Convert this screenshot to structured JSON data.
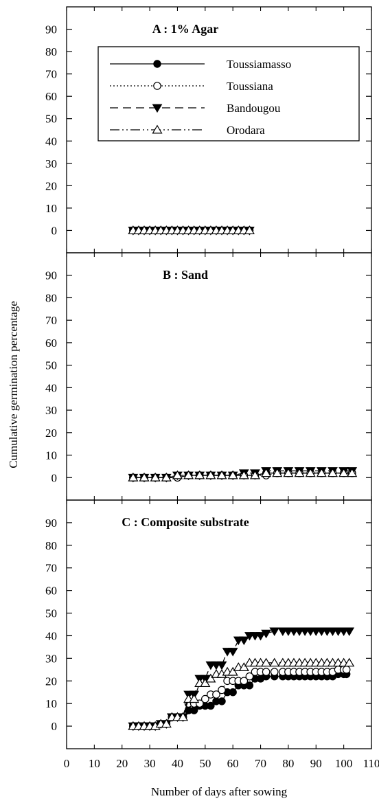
{
  "chart_data": {
    "type": "line",
    "ylabel": "Cumulative germination percentage",
    "xlabel": "Number of days after sowing",
    "xlim": [
      0,
      110
    ],
    "xticks": [
      0,
      10,
      20,
      30,
      40,
      50,
      60,
      70,
      80,
      90,
      100,
      110
    ],
    "ylim": [
      -10,
      100
    ],
    "yticks": [
      0,
      10,
      20,
      30,
      40,
      50,
      60,
      70,
      80,
      90
    ],
    "grid": false,
    "legend": {
      "placement": "top-right, inside panel A",
      "entries": [
        {
          "name": "Toussiamasso",
          "marker": "filled-circle",
          "line": "solid"
        },
        {
          "name": "Toussiana",
          "marker": "open-circle",
          "line": "dotted"
        },
        {
          "name": "Bandougou",
          "marker": "filled-down-triangle",
          "line": "dashed"
        },
        {
          "name": "Orodara",
          "marker": "open-up-triangle",
          "line": "dash-dot-dot"
        }
      ]
    },
    "panels": [
      {
        "title": "A : 1% Agar",
        "series": [
          {
            "name": "Toussiamasso",
            "x": [
              24,
              26,
              28,
              30,
              32,
              34,
              36,
              38,
              40,
              42,
              44,
              46,
              48,
              50,
              52,
              54,
              56,
              58,
              60,
              62,
              64,
              66
            ],
            "y": [
              0,
              0,
              0,
              0,
              0,
              0,
              0,
              0,
              0,
              0,
              0,
              0,
              0,
              0,
              0,
              0,
              0,
              0,
              0,
              0,
              0,
              0
            ]
          },
          {
            "name": "Toussiana",
            "x": [
              24,
              26,
              28,
              30,
              32,
              34,
              36,
              38,
              40,
              42,
              44,
              46,
              48,
              50,
              52,
              54,
              56,
              58,
              60,
              62,
              64,
              66
            ],
            "y": [
              0,
              0,
              0,
              0,
              0,
              0,
              0,
              0,
              0,
              0,
              0,
              0,
              0,
              0,
              0,
              0,
              0,
              0,
              0,
              0,
              0,
              0
            ]
          },
          {
            "name": "Bandougou",
            "x": [
              24,
              26,
              28,
              30,
              32,
              34,
              36,
              38,
              40,
              42,
              44,
              46,
              48,
              50,
              52,
              54,
              56,
              58,
              60,
              62,
              64,
              66
            ],
            "y": [
              0,
              0,
              0,
              0,
              0,
              0,
              0,
              0,
              0,
              0,
              0,
              0,
              0,
              0,
              0,
              0,
              0,
              0,
              0,
              0,
              0,
              0
            ]
          },
          {
            "name": "Orodara",
            "x": [
              24,
              26,
              28,
              30,
              32,
              34,
              36,
              38,
              40,
              42,
              44,
              46,
              48,
              50,
              52,
              54,
              56,
              58,
              60,
              62,
              64,
              66
            ],
            "y": [
              0,
              0,
              0,
              0,
              0,
              0,
              0,
              0,
              0,
              0,
              0,
              0,
              0,
              0,
              0,
              0,
              0,
              0,
              0,
              0,
              0,
              0
            ]
          }
        ]
      },
      {
        "title": "B : Sand",
        "series": [
          {
            "name": "Toussiamasso",
            "x": [
              24,
              28,
              32,
              36,
              40,
              44,
              48,
              52,
              56,
              60,
              64,
              68,
              72,
              76,
              80,
              84,
              88,
              92,
              96,
              100,
              103
            ],
            "y": [
              0,
              0,
              0,
              0,
              0,
              1,
              1,
              1,
              1,
              1,
              1,
              1,
              2,
              2,
              2,
              2,
              2,
              2,
              2,
              2,
              2
            ]
          },
          {
            "name": "Toussiana",
            "x": [
              24,
              28,
              32,
              36,
              40,
              44,
              48,
              52,
              56,
              60,
              64,
              68,
              72,
              76,
              80,
              84,
              88,
              92,
              96,
              100,
              103
            ],
            "y": [
              0,
              0,
              0,
              0,
              0,
              1,
              1,
              1,
              1,
              1,
              1,
              1,
              1,
              2,
              2,
              2,
              2,
              2,
              2,
              2,
              2
            ]
          },
          {
            "name": "Bandougou",
            "x": [
              24,
              28,
              32,
              36,
              40,
              44,
              48,
              52,
              56,
              60,
              64,
              68,
              72,
              76,
              80,
              84,
              88,
              92,
              96,
              100,
              103
            ],
            "y": [
              0,
              0,
              0,
              0,
              1,
              1,
              1,
              1,
              1,
              1,
              2,
              2,
              3,
              3,
              3,
              3,
              3,
              3,
              3,
              3,
              3
            ]
          },
          {
            "name": "Orodara",
            "x": [
              24,
              28,
              32,
              36,
              40,
              44,
              48,
              52,
              56,
              60,
              64,
              68,
              72,
              76,
              80,
              84,
              88,
              92,
              96,
              100,
              103
            ],
            "y": [
              0,
              0,
              0,
              0,
              1,
              1,
              1,
              1,
              1,
              1,
              1,
              1,
              2,
              2,
              2,
              2,
              2,
              2,
              2,
              2,
              2
            ]
          }
        ]
      },
      {
        "title": "C : Composite substrate",
        "series": [
          {
            "name": "Toussiamasso",
            "x": [
              24,
              26,
              28,
              30,
              32,
              34,
              36,
              38,
              40,
              42,
              44,
              46,
              48,
              50,
              52,
              54,
              56,
              58,
              60,
              62,
              64,
              66,
              68,
              70,
              72,
              75,
              78,
              80,
              82,
              84,
              86,
              88,
              90,
              92,
              94,
              96,
              98,
              100,
              101
            ],
            "y": [
              0,
              0,
              0,
              0,
              0,
              1,
              1,
              4,
              4,
              4,
              7,
              7,
              9,
              9,
              9,
              11,
              11,
              15,
              15,
              18,
              18,
              18,
              21,
              21,
              22,
              22,
              22,
              22,
              22,
              22,
              22,
              22,
              22,
              22,
              22,
              22,
              23,
              23,
              23
            ]
          },
          {
            "name": "Toussiana",
            "x": [
              24,
              26,
              28,
              30,
              32,
              34,
              36,
              38,
              40,
              42,
              44,
              46,
              48,
              50,
              52,
              54,
              56,
              58,
              60,
              62,
              64,
              66,
              68,
              70,
              72,
              75,
              78,
              80,
              82,
              84,
              86,
              88,
              90,
              92,
              94,
              96,
              98,
              100,
              101
            ],
            "y": [
              0,
              0,
              0,
              0,
              0,
              1,
              1,
              4,
              4,
              4,
              10,
              10,
              10,
              12,
              14,
              14,
              16,
              20,
              20,
              20,
              20,
              22,
              24,
              24,
              24,
              24,
              24,
              24,
              24,
              24,
              24,
              24,
              24,
              24,
              24,
              24,
              25,
              25,
              25
            ]
          },
          {
            "name": "Bandougou",
            "x": [
              24,
              26,
              28,
              30,
              32,
              34,
              36,
              38,
              40,
              42,
              44,
              46,
              48,
              50,
              52,
              54,
              56,
              58,
              60,
              62,
              64,
              66,
              68,
              70,
              72,
              75,
              78,
              80,
              82,
              84,
              86,
              88,
              90,
              92,
              94,
              96,
              98,
              100,
              102
            ],
            "y": [
              0,
              0,
              0,
              0,
              0,
              1,
              1,
              4,
              4,
              4,
              14,
              14,
              21,
              21,
              27,
              27,
              27,
              33,
              33,
              38,
              38,
              40,
              40,
              40,
              41,
              42,
              42,
              42,
              42,
              42,
              42,
              42,
              42,
              42,
              42,
              42,
              42,
              42,
              42
            ]
          },
          {
            "name": "Orodara",
            "x": [
              24,
              26,
              28,
              30,
              32,
              34,
              36,
              38,
              40,
              42,
              44,
              46,
              48,
              50,
              52,
              54,
              56,
              58,
              60,
              62,
              64,
              66,
              68,
              70,
              72,
              75,
              78,
              80,
              82,
              84,
              86,
              88,
              90,
              92,
              94,
              96,
              98,
              100,
              102
            ],
            "y": [
              0,
              0,
              0,
              0,
              0,
              1,
              1,
              4,
              4,
              4,
              12,
              12,
              19,
              19,
              21,
              23,
              23,
              24,
              24,
              26,
              26,
              28,
              28,
              28,
              28,
              28,
              28,
              28,
              28,
              28,
              28,
              28,
              28,
              28,
              28,
              28,
              28,
              28,
              28
            ]
          }
        ]
      }
    ]
  }
}
